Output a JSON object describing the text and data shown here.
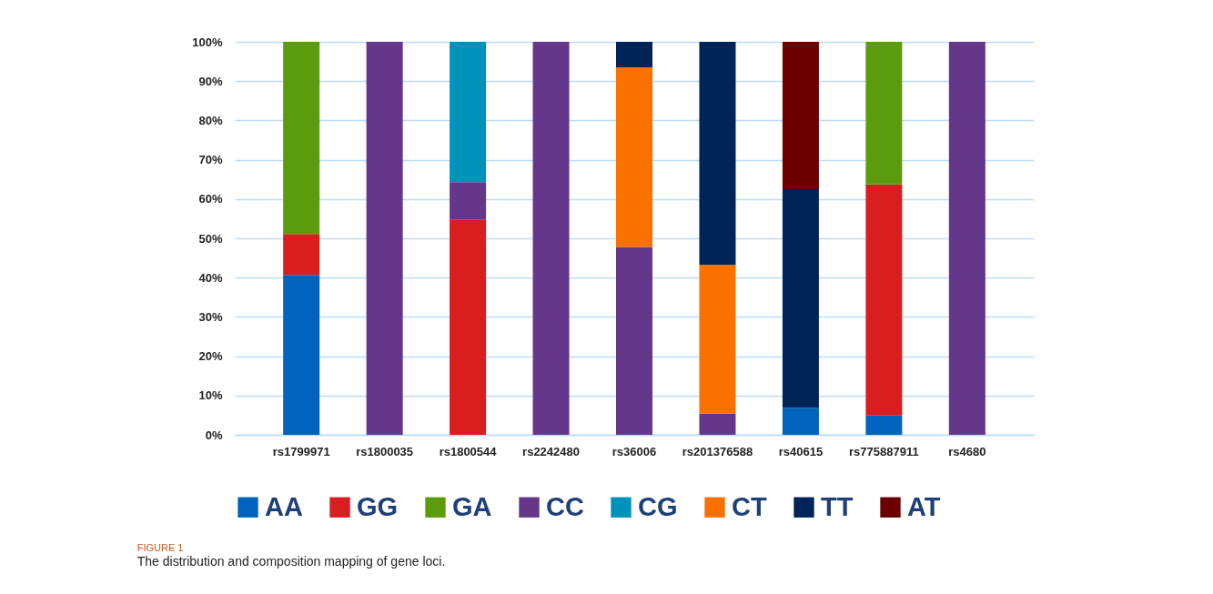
{
  "chart_data": {
    "type": "bar",
    "stacked": true,
    "title": "FIGURE 1",
    "subtitle": "The distribution and composition mapping of gene loci.",
    "categories": [
      "rs1799971",
      "rs1800035",
      "rs1800544",
      "rs2242480",
      "rs36006",
      "rs201376588",
      "rs40615",
      "rs775887911",
      "rs4680"
    ],
    "series": [
      {
        "name": "AA",
        "color": "#0063bd",
        "values": [
          40.7,
          null,
          null,
          null,
          null,
          null,
          6.9,
          4.9,
          null
        ]
      },
      {
        "name": "GG",
        "color": "#d81e1e",
        "values": [
          10.4,
          null,
          54.7,
          null,
          null,
          null,
          null,
          58.8,
          null
        ]
      },
      {
        "name": "GA",
        "color": "#5c9c0c",
        "values": [
          48.9,
          null,
          null,
          null,
          null,
          null,
          null,
          36.3,
          null
        ]
      },
      {
        "name": "CC",
        "color": "#64378a",
        "values": [
          null,
          100,
          9.6,
          100,
          47.8,
          5.4,
          null,
          null,
          100
        ]
      },
      {
        "name": "CG",
        "color": "#0092bb",
        "values": [
          null,
          null,
          35.7,
          null,
          null,
          null,
          null,
          null,
          null
        ]
      },
      {
        "name": "CT",
        "color": "#fb7100",
        "values": [
          null,
          null,
          null,
          null,
          45.7,
          37.9,
          null,
          null,
          null
        ]
      },
      {
        "name": "TT",
        "color": "#002458",
        "values": [
          null,
          null,
          null,
          null,
          6.5,
          56.7,
          55.6,
          null,
          null
        ]
      },
      {
        "name": "AT",
        "color": "#6c0000",
        "values": [
          null,
          null,
          null,
          null,
          null,
          null,
          37.5,
          null,
          null
        ]
      }
    ],
    "ylim": [
      0,
      100
    ],
    "yticks": [
      {
        "value": 0,
        "label": "0%"
      },
      {
        "value": 10,
        "label": "10%"
      },
      {
        "value": 20,
        "label": "20%"
      },
      {
        "value": 30,
        "label": "30%"
      },
      {
        "value": 40,
        "label": "40%"
      },
      {
        "value": 50,
        "label": "50%"
      },
      {
        "value": 60,
        "label": "60%"
      },
      {
        "value": 70,
        "label": "70%"
      },
      {
        "value": 80,
        "label": "80%"
      },
      {
        "value": 90,
        "label": "90%"
      },
      {
        "value": 100,
        "label": "100%"
      }
    ],
    "grid": "y",
    "legend": "bottom"
  }
}
